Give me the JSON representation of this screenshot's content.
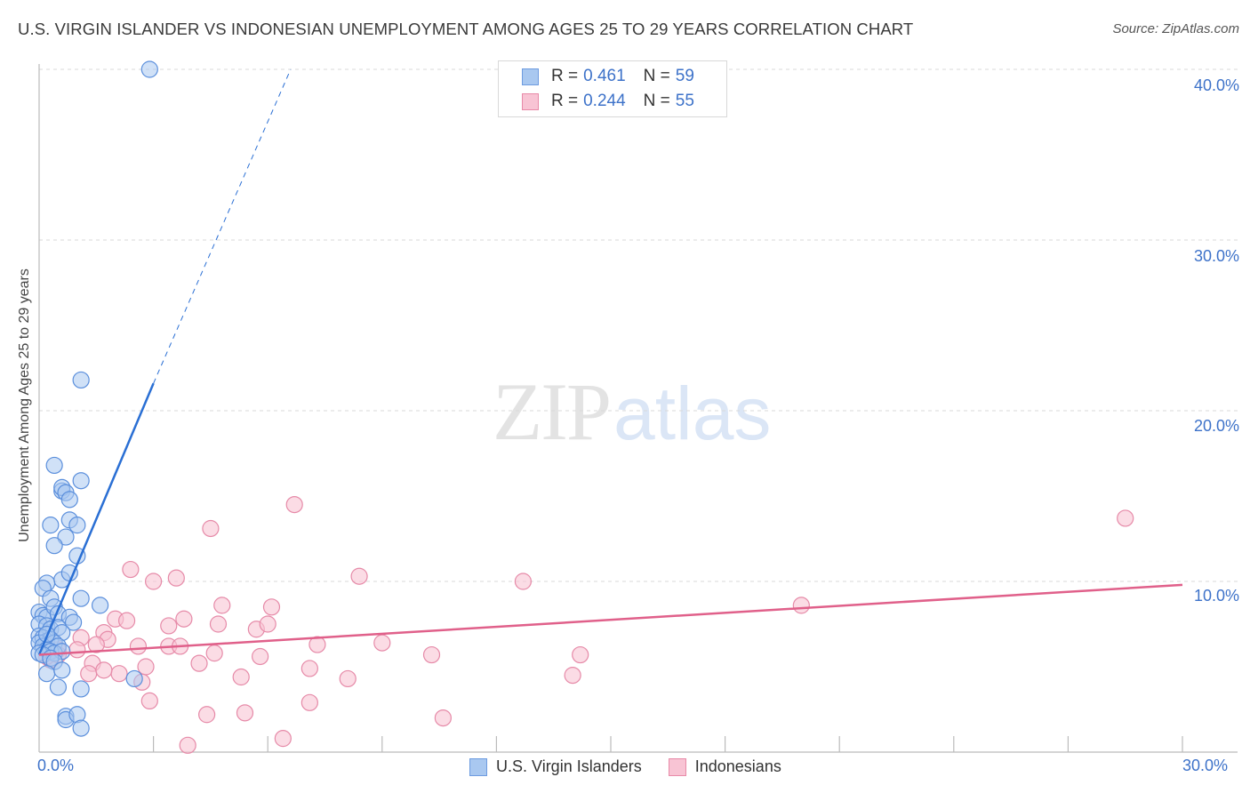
{
  "header": {
    "title": "U.S. VIRGIN ISLANDER VS INDONESIAN UNEMPLOYMENT AMONG AGES 25 TO 29 YEARS CORRELATION CHART",
    "source": "Source: ZipAtlas.com"
  },
  "watermark": {
    "zip": "ZIP",
    "atlas": "atlas"
  },
  "legend": {
    "rows": [
      {
        "r_label": "R =",
        "r_value": "0.461",
        "n_label": "N =",
        "n_value": "59",
        "color": "#a9c8f0",
        "border": "#6d9be0"
      },
      {
        "r_label": "R =",
        "r_value": "0.244",
        "n_label": "N =",
        "n_value": "55",
        "color": "#f8c4d4",
        "border": "#e88aa8"
      }
    ]
  },
  "bottom_legend": {
    "items": [
      {
        "label": "U.S. Virgin Islanders",
        "color": "#a9c8f0",
        "border": "#6d9be0"
      },
      {
        "label": "Indonesians",
        "color": "#f8c4d4",
        "border": "#e88aa8"
      }
    ]
  },
  "axes": {
    "y_label": "Unemployment Among Ages 25 to 29 years",
    "y_ticks": [
      "40.0%",
      "30.0%",
      "20.0%",
      "10.0%"
    ],
    "x_ticks": [
      "0.0%",
      "30.0%"
    ]
  },
  "colors": {
    "blue_fill": "#a9c8f0",
    "blue_stroke": "#5b8fdc",
    "blue_line": "#2a6fd4",
    "pink_fill": "#f8c4d4",
    "pink_stroke": "#e68aa8",
    "pink_line": "#e0608a",
    "tick_label": "#3d72c9"
  },
  "chart_data": {
    "type": "scatter",
    "title": "U.S. Virgin Islander vs Indonesian Unemployment Among Ages 25 to 29 years Correlation Chart",
    "xlabel": "",
    "ylabel": "Unemployment Among Ages 25 to 29 years",
    "xlim": [
      0,
      30
    ],
    "ylim": [
      0,
      40
    ],
    "x_unit": "%",
    "y_unit": "%",
    "grid": "horizontal dashed at 10, 20, 30, 40",
    "legend_position": "top-center and bottom-center",
    "series": [
      {
        "name": "U.S. Virgin Islanders",
        "R": 0.461,
        "N": 59,
        "color": "#a9c8f0",
        "trendline": {
          "x": [
            0.0,
            3.0
          ],
          "y": [
            5.7,
            21.6
          ],
          "extended_dashed_to": [
            6.6,
            40.0
          ]
        },
        "points": [
          [
            2.9,
            40.0
          ],
          [
            1.1,
            21.8
          ],
          [
            0.4,
            16.8
          ],
          [
            1.1,
            15.9
          ],
          [
            0.6,
            15.3
          ],
          [
            0.6,
            15.5
          ],
          [
            0.7,
            15.2
          ],
          [
            0.8,
            14.8
          ],
          [
            0.3,
            13.3
          ],
          [
            0.8,
            13.6
          ],
          [
            1.0,
            13.3
          ],
          [
            0.7,
            12.6
          ],
          [
            0.4,
            12.1
          ],
          [
            1.0,
            11.5
          ],
          [
            0.6,
            10.1
          ],
          [
            0.8,
            10.5
          ],
          [
            0.2,
            9.9
          ],
          [
            0.1,
            9.6
          ],
          [
            0.3,
            9.0
          ],
          [
            1.1,
            9.0
          ],
          [
            1.6,
            8.6
          ],
          [
            0.0,
            8.2
          ],
          [
            0.1,
            8.0
          ],
          [
            0.2,
            7.9
          ],
          [
            0.4,
            8.5
          ],
          [
            0.5,
            8.1
          ],
          [
            0.8,
            7.9
          ],
          [
            0.9,
            7.6
          ],
          [
            0.0,
            7.5
          ],
          [
            0.2,
            7.4
          ],
          [
            0.3,
            7.2
          ],
          [
            0.5,
            7.3
          ],
          [
            0.6,
            7.0
          ],
          [
            0.0,
            6.8
          ],
          [
            0.1,
            6.7
          ],
          [
            0.2,
            6.5
          ],
          [
            0.3,
            6.6
          ],
          [
            0.4,
            6.4
          ],
          [
            0.5,
            6.2
          ],
          [
            0.0,
            6.4
          ],
          [
            0.1,
            6.2
          ],
          [
            0.2,
            6.0
          ],
          [
            0.3,
            5.9
          ],
          [
            0.4,
            5.8
          ],
          [
            0.6,
            5.9
          ],
          [
            0.0,
            5.8
          ],
          [
            0.1,
            5.7
          ],
          [
            0.3,
            5.5
          ],
          [
            0.4,
            5.3
          ],
          [
            0.2,
            4.6
          ],
          [
            0.6,
            4.8
          ],
          [
            2.5,
            4.3
          ],
          [
            0.5,
            3.8
          ],
          [
            1.1,
            3.7
          ],
          [
            0.7,
            2.1
          ],
          [
            0.7,
            1.9
          ],
          [
            1.0,
            2.2
          ],
          [
            1.1,
            1.4
          ],
          [
            0.2,
            6.9
          ]
        ]
      },
      {
        "name": "Indonesians",
        "R": 0.244,
        "N": 55,
        "color": "#f8c4d4",
        "trendline": {
          "x": [
            0.0,
            30.0
          ],
          "y": [
            5.7,
            9.8
          ]
        },
        "points": [
          [
            6.7,
            14.5
          ],
          [
            28.5,
            13.7
          ],
          [
            4.5,
            13.1
          ],
          [
            2.4,
            10.7
          ],
          [
            3.0,
            10.0
          ],
          [
            3.6,
            10.2
          ],
          [
            8.4,
            10.3
          ],
          [
            12.7,
            10.0
          ],
          [
            20.0,
            8.6
          ],
          [
            4.8,
            8.6
          ],
          [
            6.1,
            8.5
          ],
          [
            2.0,
            7.8
          ],
          [
            2.3,
            7.7
          ],
          [
            3.8,
            7.8
          ],
          [
            3.4,
            7.4
          ],
          [
            4.7,
            7.5
          ],
          [
            5.7,
            7.2
          ],
          [
            6.0,
            7.5
          ],
          [
            1.7,
            7.0
          ],
          [
            1.1,
            6.7
          ],
          [
            1.8,
            6.6
          ],
          [
            2.6,
            6.2
          ],
          [
            3.4,
            6.2
          ],
          [
            3.7,
            6.2
          ],
          [
            7.3,
            6.3
          ],
          [
            9.0,
            6.4
          ],
          [
            0.2,
            6.2
          ],
          [
            0.5,
            6.0
          ],
          [
            1.0,
            6.0
          ],
          [
            4.6,
            5.8
          ],
          [
            5.8,
            5.6
          ],
          [
            0.3,
            5.4
          ],
          [
            1.4,
            5.2
          ],
          [
            4.2,
            5.2
          ],
          [
            2.8,
            5.0
          ],
          [
            7.1,
            4.9
          ],
          [
            10.3,
            5.7
          ],
          [
            14.2,
            5.7
          ],
          [
            1.3,
            4.6
          ],
          [
            2.1,
            4.6
          ],
          [
            1.7,
            4.8
          ],
          [
            5.3,
            4.4
          ],
          [
            8.1,
            4.3
          ],
          [
            14.0,
            4.5
          ],
          [
            2.9,
            3.0
          ],
          [
            4.4,
            2.2
          ],
          [
            5.4,
            2.3
          ],
          [
            7.1,
            2.9
          ],
          [
            10.6,
            2.0
          ],
          [
            3.9,
            0.4
          ],
          [
            6.4,
            0.8
          ],
          [
            0.5,
            5.7
          ],
          [
            0.2,
            5.6
          ],
          [
            1.5,
            6.3
          ],
          [
            2.7,
            4.1
          ]
        ]
      }
    ]
  }
}
